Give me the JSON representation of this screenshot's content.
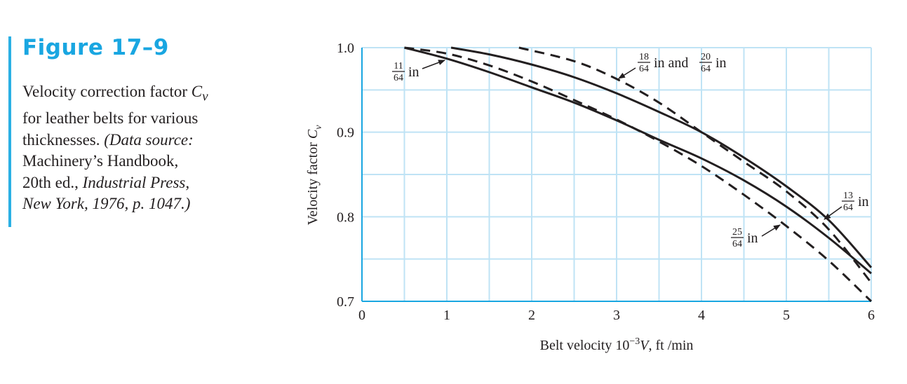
{
  "figure": {
    "label": "Figure 17–9",
    "caption": {
      "line1": "Velocity correction factor ",
      "cv_symbol": "C",
      "cv_sub": "v",
      "line2": "for leather belts for various",
      "line3_plain": "thicknesses. ",
      "line3_italic": "(Data source:",
      "line4": "Machinery’s Handbook,",
      "line5_plain": "20th ed., ",
      "line5_italic": "Industrial Press,",
      "line6_italic": "New York, 1976, p. 1047.)"
    },
    "accent_color": "#19a6e1",
    "grid_color": "#bfe3f5"
  },
  "chart_data": {
    "type": "line",
    "xlabel_prefix": "Belt velocity 10",
    "xlabel_exp": "−3",
    "xlabel_var": "V",
    "xlabel_suffix": ", ft /min",
    "ylabel_prefix": "Velocity factor ",
    "ylabel_var": "C",
    "ylabel_sub": "v",
    "xlim": [
      0,
      6
    ],
    "ylim": [
      0.7,
      1.0
    ],
    "x_ticks": [
      "0",
      "1",
      "2",
      "3",
      "4",
      "5",
      "6"
    ],
    "y_ticks": [
      "0.7",
      "0.8",
      "0.9",
      "1.0"
    ],
    "grid": true,
    "series": [
      {
        "name": "11/64 in",
        "style": "solid",
        "x": [
          0.5,
          1,
          1.5,
          2,
          2.5,
          3,
          3.5,
          4,
          4.5,
          5,
          5.5,
          6
        ],
        "y": [
          1.0,
          0.987,
          0.971,
          0.953,
          0.935,
          0.914,
          0.891,
          0.869,
          0.843,
          0.812,
          0.775,
          0.733
        ]
      },
      {
        "name": "13/64 in",
        "style": "dashed",
        "x": [
          0.5,
          1,
          1.5,
          2,
          2.5,
          3,
          3.5,
          4,
          4.5,
          5,
          5.5,
          6
        ],
        "y": [
          1.0,
          0.993,
          0.979,
          0.96,
          0.938,
          0.915,
          0.889,
          0.86,
          0.826,
          0.789,
          0.748,
          0.7
        ]
      },
      {
        "name": "18/64 in and 20/64 in",
        "style": "solid",
        "x": [
          1.05,
          1.5,
          2,
          2.5,
          3,
          3.5,
          4,
          4.5,
          5,
          5.5,
          6
        ],
        "y": [
          1.0,
          0.992,
          0.98,
          0.965,
          0.946,
          0.924,
          0.9,
          0.87,
          0.836,
          0.796,
          0.74
        ]
      },
      {
        "name": "25/64 in",
        "style": "dashed",
        "x": [
          1.85,
          2.5,
          3,
          3.5,
          4,
          4.5,
          5,
          5.5,
          6
        ],
        "y": [
          1.0,
          0.984,
          0.963,
          0.935,
          0.9,
          0.865,
          0.83,
          0.785,
          0.722
        ]
      }
    ],
    "annotations": [
      {
        "num": "11",
        "den": "64",
        "unit": "in"
      },
      {
        "num": "18",
        "den": "64",
        "unit": "in and",
        "num2": "20",
        "den2": "64",
        "unit2": "in"
      },
      {
        "num": "13",
        "den": "64",
        "unit": "in"
      },
      {
        "num": "25",
        "den": "64",
        "unit": "in"
      }
    ]
  }
}
